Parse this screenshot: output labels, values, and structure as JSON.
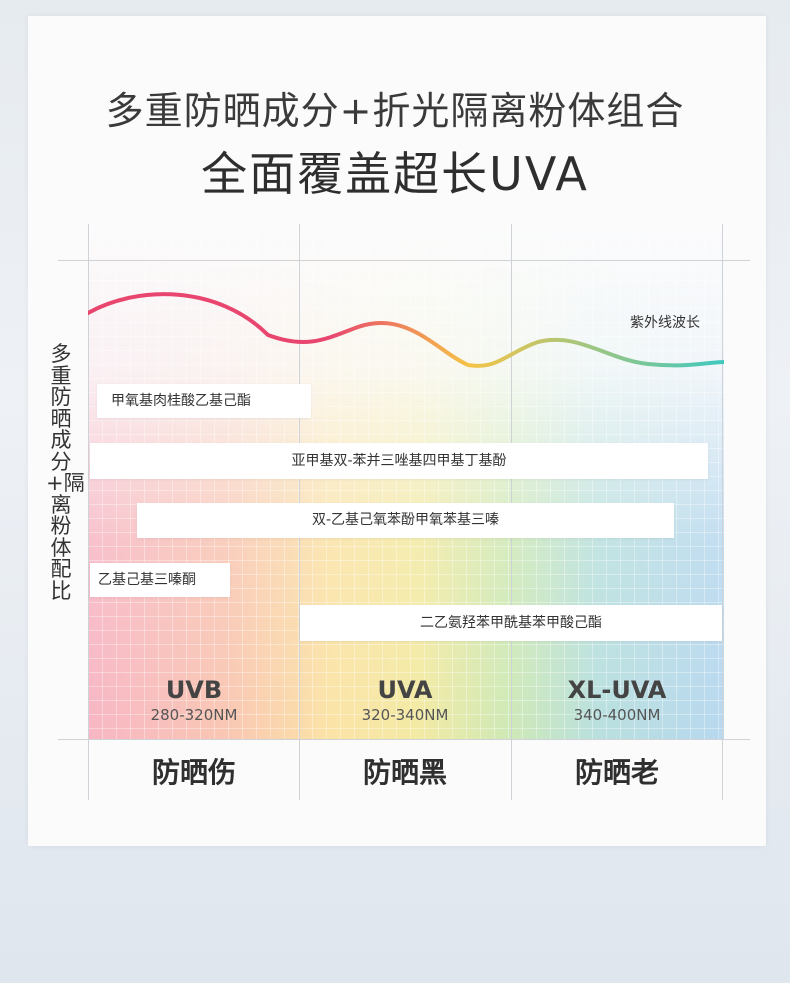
{
  "headline": {
    "line1": "多重防晒成分+折光隔离粉体组合",
    "line2": "全面覆盖超长UVA"
  },
  "side_label": "多重防晒成分+隔离粉体配比",
  "wave_label": "紫外线波长",
  "ingredients": [
    "甲氧基肉桂酸乙基己酯",
    "亚甲基双-苯并三唑基四甲基丁基酚",
    "双-乙基己氧苯酚甲氧苯基三嗪",
    "乙基己基三嗪酮",
    "二乙氨羟苯甲酰基苯甲酸己酯"
  ],
  "bands": [
    {
      "name": "UVB",
      "range": "280-320NM",
      "effect": "防晒伤"
    },
    {
      "name": "UVA",
      "range": "320-340NM",
      "effect": "防晒黑"
    },
    {
      "name": "XL-UVA",
      "range": "340-400NM",
      "effect": "防晒老"
    }
  ],
  "colors": {
    "wave_start": "#e8466f",
    "wave_mid": "#f5c447",
    "wave_green": "#9fd96a",
    "wave_end": "#3fc8c0"
  }
}
